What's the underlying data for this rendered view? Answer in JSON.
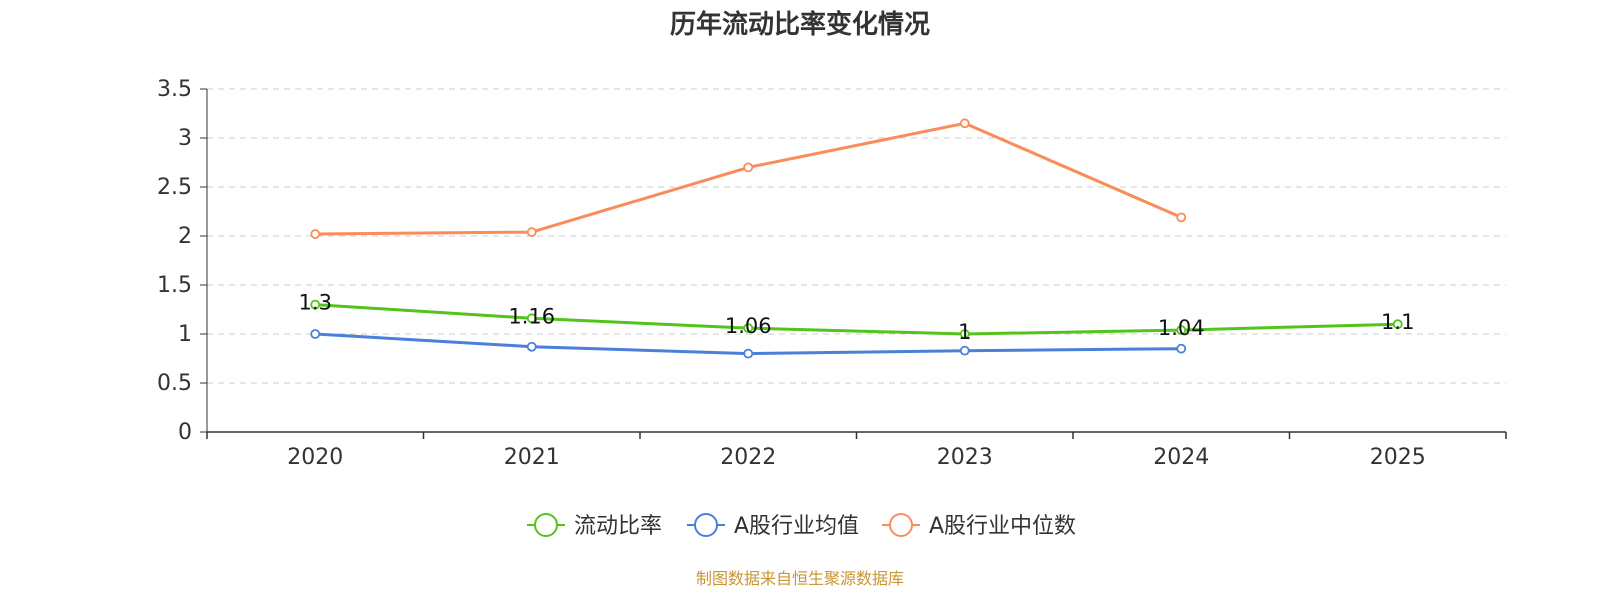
{
  "chart_data": {
    "type": "line",
    "title": "历年流动比率变化情况",
    "categories": [
      "2020",
      "2021",
      "2022",
      "2023",
      "2024",
      "2025"
    ],
    "ylim": [
      0,
      3.5
    ],
    "yticks": [
      "0",
      "0.5",
      "1",
      "1.5",
      "2",
      "2.5",
      "3",
      "3.5"
    ],
    "grid": true,
    "legend_position": "bottom-center",
    "series": [
      {
        "name": "流动比率",
        "color": "#52c41a",
        "values": [
          1.3,
          1.16,
          1.06,
          1,
          1.04,
          1.1
        ],
        "labels": [
          "1.3",
          "1.16",
          "1.06",
          "1",
          "1.04",
          "1.1"
        ]
      },
      {
        "name": "A股行业均值",
        "color": "#4a7fdc",
        "values": [
          1.0,
          0.87,
          0.8,
          0.83,
          0.85,
          null
        ]
      },
      {
        "name": "A股行业中位数",
        "color": "#fa8c5a",
        "values": [
          2.02,
          2.04,
          2.7,
          3.15,
          2.19,
          null
        ]
      }
    ],
    "source": "制图数据来自恒生聚源数据库",
    "source_color": "#c89632"
  }
}
